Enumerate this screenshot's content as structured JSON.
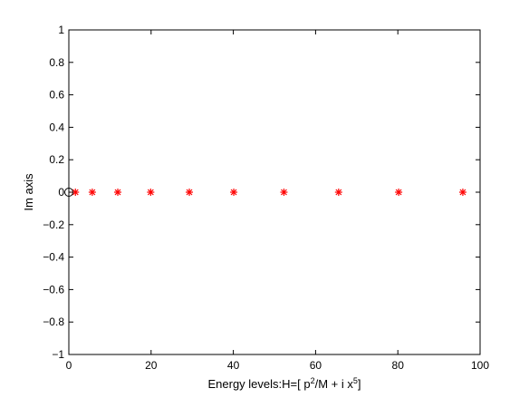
{
  "chart_data": {
    "type": "scatter",
    "title": "",
    "xlabel": "Energy levels:H=[ p^2/M + i x^5]",
    "xlabel_parts": {
      "pre": "Energy levels:H=[ p",
      "sup1": "2",
      "mid": "/M + i x",
      "sup2": "5",
      "post": "]"
    },
    "ylabel": "Im axis",
    "xlim": [
      0,
      100
    ],
    "ylim": [
      -1,
      1
    ],
    "xticks": [
      0,
      20,
      40,
      60,
      80,
      100
    ],
    "yticks": [
      -1,
      -0.8,
      -0.6,
      -0.4,
      -0.2,
      0,
      0.2,
      0.4,
      0.6,
      0.8,
      1
    ],
    "xtick_labels": [
      "0",
      "20",
      "40",
      "60",
      "80",
      "100"
    ],
    "ytick_labels": [
      "−1",
      "−0.8",
      "−0.6",
      "−0.4",
      "−0.2",
      "0",
      "0.2",
      "0.4",
      "0.6",
      "0.8",
      "1"
    ],
    "grid": false,
    "series": [
      {
        "marker": "asterisk",
        "color": "#ff0000",
        "x": [
          1.6,
          5.7,
          11.9,
          19.9,
          29.3,
          40.1,
          52.3,
          65.6,
          80.2,
          95.8
        ],
        "y": [
          0,
          0,
          0,
          0,
          0,
          0,
          0,
          0,
          0,
          0
        ]
      },
      {
        "marker": "circle",
        "color": "#000000",
        "x": [
          0
        ],
        "y": [
          0
        ]
      }
    ]
  }
}
